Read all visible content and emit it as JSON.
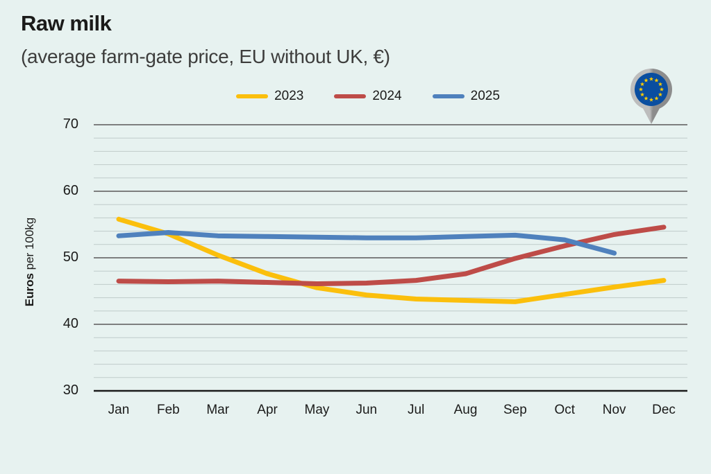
{
  "header": {
    "title": "Raw milk",
    "subtitle": "(average farm-gate price, EU without UK, €)"
  },
  "legend": [
    {
      "label": "2023",
      "color": "#FBBF0C"
    },
    {
      "label": "2024",
      "color": "#BE4C48"
    },
    {
      "label": "2025",
      "color": "#4F81BD"
    }
  ],
  "axis": {
    "ylabel_bold": "Euros",
    "ylabel_rest": " per 100kg"
  },
  "icons": {
    "eu_pin": {
      "name": "eu-location-pin-icon",
      "flag_blue": "#0A4EA0",
      "star_yellow": "#FFCC00",
      "pin_gray_light": "#BDBDBD",
      "pin_gray_dark": "#8C8C8C"
    }
  },
  "colors": {
    "background": "#E7F2F0",
    "minor_grid": "#BFCBCA",
    "major_grid": "#6E6E6E",
    "baseline": "#1A1A1A",
    "text": "#1B1B1A"
  },
  "chart_data": {
    "type": "line",
    "title": "Raw milk",
    "subtitle": "(average farm-gate price, EU without UK, €)",
    "ylabel": "Euros per 100kg",
    "xlabel": "",
    "ylim": [
      30,
      70
    ],
    "yticks": [
      70,
      60,
      50,
      40,
      30
    ],
    "minor_grid_step": 2,
    "grid": true,
    "legend_position": "top",
    "categories": [
      "Jan",
      "Feb",
      "Mar",
      "Apr",
      "May",
      "Jun",
      "Jul",
      "Aug",
      "Sep",
      "Oct",
      "Nov",
      "Dec"
    ],
    "series": [
      {
        "name": "2023",
        "color": "#FBBF0C",
        "values": [
          55.8,
          53.6,
          50.4,
          47.6,
          45.5,
          44.4,
          43.8,
          43.6,
          43.4,
          44.5,
          45.6,
          46.6
        ]
      },
      {
        "name": "2024",
        "color": "#BE4C48",
        "values": [
          46.5,
          46.4,
          46.5,
          46.3,
          46.1,
          46.2,
          46.6,
          47.6,
          49.9,
          51.8,
          53.5,
          54.6
        ]
      },
      {
        "name": "2025",
        "color": "#4F81BD",
        "values": [
          53.3,
          53.8,
          53.3,
          53.2,
          53.1,
          53.0,
          53.0,
          53.2,
          53.4,
          52.7,
          50.7,
          null
        ]
      }
    ]
  }
}
